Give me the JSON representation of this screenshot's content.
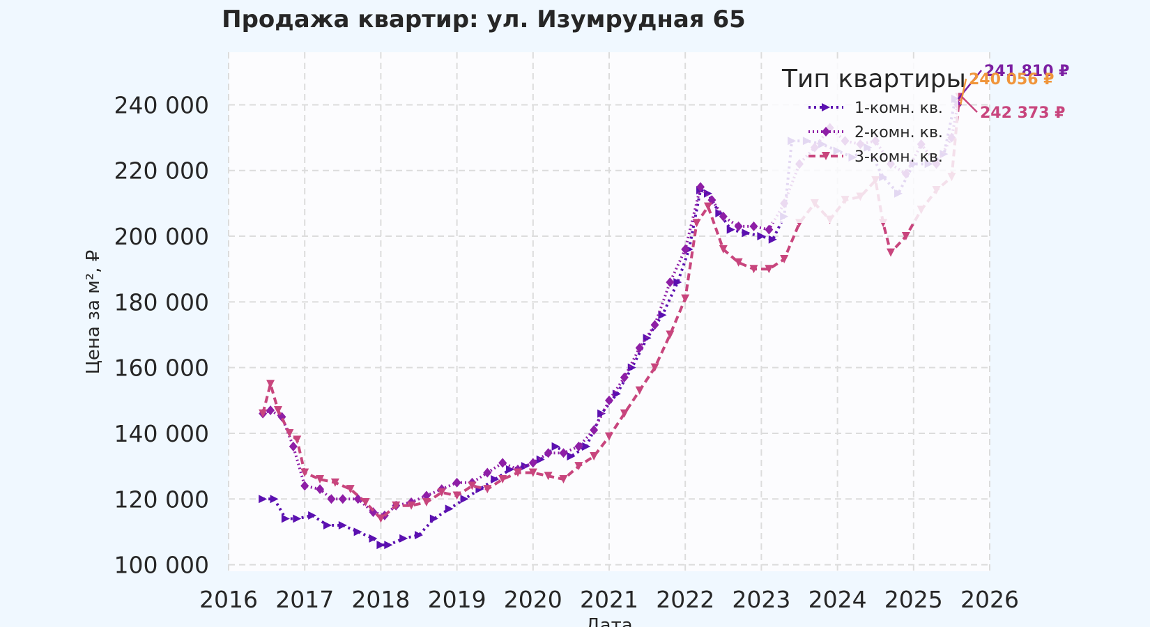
{
  "title": "Продажа квартир: ул. Изумрудная 65",
  "colors": {
    "background": "#f0f8ff",
    "plot_bg": "#fcfcfe",
    "grid": "#dcdcdc"
  },
  "chart_data": {
    "type": "line",
    "title": "Продажа квартир: ул. Изумрудная 65",
    "xlabel": "Дата",
    "ylabel": "Цена за м², ₽",
    "xlim": [
      2016,
      2026
    ],
    "ylim": [
      98000,
      256000
    ],
    "x_ticks": [
      "2016",
      "2017",
      "2018",
      "2019",
      "2020",
      "2021",
      "2022",
      "2023",
      "2024",
      "2025",
      "2026"
    ],
    "y_ticks": [
      "100 000",
      "120 000",
      "140 000",
      "160 000",
      "180 000",
      "200 000",
      "220 000",
      "240 000"
    ],
    "y_tick_values": [
      100000,
      120000,
      140000,
      160000,
      180000,
      200000,
      220000,
      240000
    ],
    "grid": true,
    "legend": {
      "title": "Тип квартиры",
      "placement": "top-right"
    },
    "series": [
      {
        "name": "1-комн. кв.",
        "color": "#5b10b0",
        "dash": "3 5",
        "marker": "triangle-right",
        "x": [
          2016.45,
          2016.6,
          2016.75,
          2016.9,
          2017.1,
          2017.3,
          2017.5,
          2017.7,
          2017.9,
          2018.0,
          2018.1,
          2018.3,
          2018.5,
          2018.7,
          2018.9,
          2019.1,
          2019.3,
          2019.5,
          2019.7,
          2019.9,
          2020.1,
          2020.3,
          2020.5,
          2020.7,
          2020.9,
          2021.1,
          2021.3,
          2021.5,
          2021.7,
          2021.9,
          2022.05,
          2022.2,
          2022.3,
          2022.45,
          2022.6,
          2022.8,
          2023.0,
          2023.15,
          2023.3,
          2023.4,
          2023.6,
          2023.8,
          2024.0,
          2024.2,
          2024.4,
          2024.6,
          2024.8,
          2025.0,
          2025.2,
          2025.4,
          2025.55
        ],
        "y": [
          120000,
          120000,
          114000,
          114000,
          115000,
          112000,
          112000,
          110000,
          108000,
          106000,
          106000,
          108000,
          109000,
          114000,
          117000,
          120000,
          123000,
          126000,
          129000,
          130000,
          132000,
          136000,
          133000,
          136000,
          146000,
          152000,
          160000,
          169000,
          176000,
          186000,
          196000,
          214000,
          213000,
          207000,
          202000,
          201000,
          200000,
          199000,
          206000,
          229000,
          229000,
          228000,
          226000,
          224000,
          227000,
          218000,
          213000,
          222000,
          222000,
          225000,
          241810
        ]
      },
      {
        "name": "2-комн. кв.",
        "color": "#8e1ea6",
        "dash": "2 4",
        "marker": "diamond",
        "x": [
          2016.45,
          2016.55,
          2016.7,
          2016.85,
          2017.0,
          2017.2,
          2017.35,
          2017.5,
          2017.7,
          2017.9,
          2018.05,
          2018.2,
          2018.4,
          2018.6,
          2018.8,
          2019.0,
          2019.2,
          2019.4,
          2019.6,
          2019.8,
          2020.0,
          2020.2,
          2020.4,
          2020.6,
          2020.8,
          2021.0,
          2021.2,
          2021.4,
          2021.6,
          2021.8,
          2022.0,
          2022.2,
          2022.35,
          2022.5,
          2022.7,
          2022.9,
          2023.1,
          2023.3,
          2023.5,
          2023.7,
          2023.9,
          2024.1,
          2024.3,
          2024.5,
          2024.7,
          2024.9,
          2025.1,
          2025.3,
          2025.5,
          2025.58
        ],
        "y": [
          146000,
          147000,
          145000,
          136000,
          124000,
          123000,
          120000,
          120000,
          120000,
          116000,
          115000,
          118000,
          119000,
          121000,
          123000,
          125000,
          125000,
          128000,
          131000,
          129000,
          131000,
          134000,
          134000,
          136000,
          141000,
          150000,
          157000,
          166000,
          173000,
          186000,
          196000,
          215000,
          211000,
          206000,
          203000,
          203000,
          202000,
          210000,
          222000,
          227000,
          233000,
          229000,
          228000,
          229000,
          222000,
          219000,
          228000,
          222000,
          230000,
          240056
        ]
      },
      {
        "name": "3-комн. кв.",
        "color": "#c8457d",
        "dash": "10 6",
        "marker": "triangle-down",
        "x": [
          2016.45,
          2016.55,
          2016.65,
          2016.8,
          2016.9,
          2017.0,
          2017.2,
          2017.4,
          2017.6,
          2017.8,
          2018.0,
          2018.2,
          2018.4,
          2018.6,
          2018.8,
          2019.0,
          2019.2,
          2019.4,
          2019.6,
          2019.8,
          2020.0,
          2020.2,
          2020.4,
          2020.6,
          2020.8,
          2021.0,
          2021.2,
          2021.4,
          2021.6,
          2021.8,
          2022.0,
          2022.15,
          2022.3,
          2022.5,
          2022.7,
          2022.9,
          2023.1,
          2023.3,
          2023.5,
          2023.7,
          2023.9,
          2024.1,
          2024.3,
          2024.5,
          2024.6,
          2024.7,
          2024.9,
          2025.1,
          2025.3,
          2025.5,
          2025.6
        ],
        "y": [
          146000,
          155000,
          147000,
          140000,
          138000,
          128000,
          126000,
          125000,
          123000,
          119000,
          114000,
          118000,
          118000,
          119000,
          122000,
          121000,
          124000,
          123000,
          126000,
          128000,
          128000,
          127000,
          126000,
          130000,
          133000,
          139000,
          146000,
          153000,
          160000,
          170000,
          181000,
          204000,
          209000,
          196000,
          192000,
          190000,
          190000,
          193000,
          204000,
          210000,
          205000,
          211000,
          212000,
          217000,
          204000,
          195000,
          200000,
          208000,
          214000,
          218000,
          242373
        ]
      }
    ],
    "annotations": [
      {
        "text": "241 810 ₽",
        "series": "1-комн. кв.",
        "color": "#7b1fa2"
      },
      {
        "text": "240 056 ₽",
        "series": "2-комн. кв.",
        "color": "#f0953b"
      },
      {
        "text": "242 373 ₽",
        "series": "3-комн. кв.",
        "color": "#c8457d"
      }
    ]
  }
}
